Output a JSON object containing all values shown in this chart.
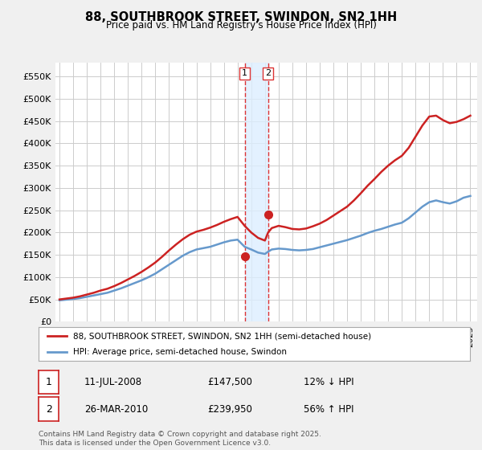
{
  "title": "88, SOUTHBROOK STREET, SWINDON, SN2 1HH",
  "subtitle": "Price paid vs. HM Land Registry's House Price Index (HPI)",
  "bg_color": "#f0f0f0",
  "plot_bg_color": "#ffffff",
  "grid_color": "#cccccc",
  "ylim": [
    0,
    580000
  ],
  "yticks": [
    0,
    50000,
    100000,
    150000,
    200000,
    250000,
    300000,
    350000,
    400000,
    450000,
    500000,
    550000
  ],
  "ytick_labels": [
    "£0",
    "£50K",
    "£100K",
    "£150K",
    "£200K",
    "£250K",
    "£300K",
    "£350K",
    "£400K",
    "£450K",
    "£500K",
    "£550K"
  ],
  "hpi_color": "#6699cc",
  "price_color": "#cc2222",
  "vline_color": "#dd3333",
  "shade_color": "#ddeeff",
  "transaction1_x": 2008.52,
  "transaction1_y": 147500,
  "transaction2_x": 2010.23,
  "transaction2_y": 239950,
  "legend_label_price": "88, SOUTHBROOK STREET, SWINDON, SN2 1HH (semi-detached house)",
  "legend_label_hpi": "HPI: Average price, semi-detached house, Swindon",
  "footer": "Contains HM Land Registry data © Crown copyright and database right 2025.\nThis data is licensed under the Open Government Licence v3.0.",
  "hpi_x": [
    1995.0,
    1995.5,
    1996.0,
    1996.5,
    1997.0,
    1997.5,
    1998.0,
    1998.5,
    1999.0,
    1999.5,
    2000.0,
    2000.5,
    2001.0,
    2001.5,
    2002.0,
    2002.5,
    2003.0,
    2003.5,
    2004.0,
    2004.5,
    2005.0,
    2005.5,
    2006.0,
    2006.5,
    2007.0,
    2007.5,
    2008.0,
    2008.52,
    2009.0,
    2009.5,
    2010.0,
    2010.23,
    2010.5,
    2011.0,
    2011.5,
    2012.0,
    2012.5,
    2013.0,
    2013.5,
    2014.0,
    2014.5,
    2015.0,
    2015.5,
    2016.0,
    2016.5,
    2017.0,
    2017.5,
    2018.0,
    2018.5,
    2019.0,
    2019.5,
    2020.0,
    2020.5,
    2021.0,
    2021.5,
    2022.0,
    2022.5,
    2023.0,
    2023.5,
    2024.0,
    2024.5,
    2025.0
  ],
  "hpi_y": [
    48000,
    49500,
    51000,
    53000,
    56000,
    59000,
    62000,
    65000,
    70000,
    75000,
    81000,
    87000,
    93000,
    100000,
    108000,
    118000,
    128000,
    138000,
    148000,
    156000,
    162000,
    165000,
    168000,
    173000,
    178000,
    182000,
    184000,
    168000,
    162000,
    155000,
    152000,
    157000,
    162000,
    164000,
    163000,
    161000,
    160000,
    161000,
    163000,
    167000,
    171000,
    175000,
    179000,
    183000,
    188000,
    193000,
    199000,
    204000,
    208000,
    213000,
    218000,
    222000,
    232000,
    245000,
    258000,
    268000,
    272000,
    268000,
    265000,
    270000,
    278000,
    282000
  ],
  "price_x": [
    1995.0,
    1995.5,
    1996.0,
    1996.5,
    1997.0,
    1997.5,
    1998.0,
    1998.5,
    1999.0,
    1999.5,
    2000.0,
    2000.5,
    2001.0,
    2001.5,
    2002.0,
    2002.5,
    2003.0,
    2003.5,
    2004.0,
    2004.5,
    2005.0,
    2005.5,
    2006.0,
    2006.5,
    2007.0,
    2007.5,
    2008.0,
    2008.52,
    2009.0,
    2009.5,
    2010.0,
    2010.23,
    2010.5,
    2011.0,
    2011.5,
    2012.0,
    2012.5,
    2013.0,
    2013.5,
    2014.0,
    2014.5,
    2015.0,
    2015.5,
    2016.0,
    2016.5,
    2017.0,
    2017.5,
    2018.0,
    2018.5,
    2019.0,
    2019.5,
    2020.0,
    2020.5,
    2021.0,
    2021.5,
    2022.0,
    2022.5,
    2023.0,
    2023.5,
    2024.0,
    2024.5,
    2025.0
  ],
  "price_y": [
    50000,
    52000,
    54000,
    57000,
    61000,
    65000,
    70000,
    74000,
    80000,
    87000,
    95000,
    103000,
    112000,
    122000,
    133000,
    146000,
    160000,
    173000,
    185000,
    195000,
    202000,
    206000,
    211000,
    217000,
    224000,
    230000,
    235000,
    215000,
    200000,
    188000,
    182000,
    200000,
    210000,
    215000,
    212000,
    208000,
    207000,
    209000,
    214000,
    220000,
    228000,
    238000,
    248000,
    258000,
    272000,
    288000,
    305000,
    320000,
    336000,
    350000,
    362000,
    372000,
    390000,
    415000,
    440000,
    460000,
    462000,
    452000,
    445000,
    448000,
    454000,
    462000
  ],
  "xtick_years": [
    1995,
    1996,
    1997,
    1998,
    1999,
    2000,
    2001,
    2002,
    2003,
    2004,
    2005,
    2006,
    2007,
    2008,
    2009,
    2010,
    2011,
    2012,
    2013,
    2014,
    2015,
    2016,
    2017,
    2018,
    2019,
    2020,
    2021,
    2022,
    2023,
    2024,
    2025
  ]
}
